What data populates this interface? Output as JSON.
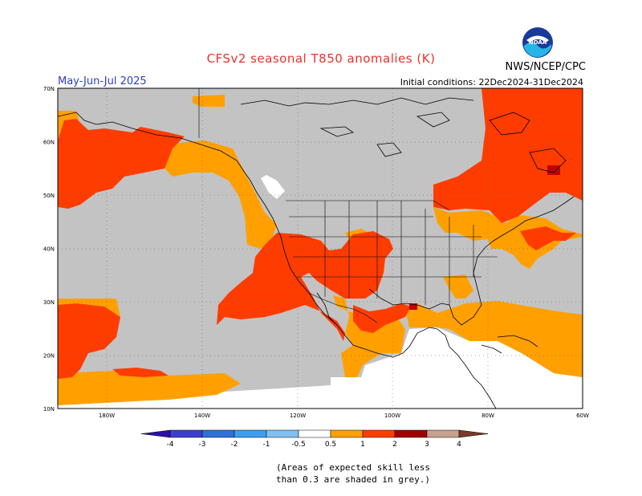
{
  "header": {
    "title": "CFSv2 seasonal T850 anomalies (K)",
    "period": "May-Jun-Jul 2025",
    "initial_conditions": "Initial conditions: 22Dec2024-31Dec2024",
    "organization": "NWS/NCEP/CPC",
    "logo_text": "NOAA"
  },
  "map": {
    "lon_ticks": [
      "180W",
      "140W",
      "120W",
      "100W",
      "80W",
      "60W"
    ],
    "lat_ticks": [
      "70N",
      "60N",
      "50N",
      "40N",
      "30N",
      "20N",
      "10N"
    ],
    "extent": {
      "lon_min": -190,
      "lon_max": -60,
      "lat_min": 10,
      "lat_max": 70
    },
    "colors": {
      "no_skill_grey": "#c3c3c3",
      "near_normal_white": "#ffffff",
      "anom_0_5_1": "#ffa000",
      "anom_1_2": "#ff3c00",
      "anom_2_3": "#c00000"
    }
  },
  "colorbar": {
    "labels": [
      "-4",
      "-3",
      "-2",
      "-1",
      "-0.5",
      "0.5",
      "1",
      "2",
      "3",
      "4"
    ],
    "colors": [
      "#2c10a8",
      "#3d3fd0",
      "#2f6fd8",
      "#3d9ef0",
      "#7fc0f4",
      "#ffffff",
      "#ffa000",
      "#ff3c00",
      "#a00000",
      "#c8a090",
      "#7a3a2a"
    ]
  },
  "note": {
    "line1": "(Areas of expected skill less",
    "line2": "than 0.3 are shaded in grey.)"
  }
}
